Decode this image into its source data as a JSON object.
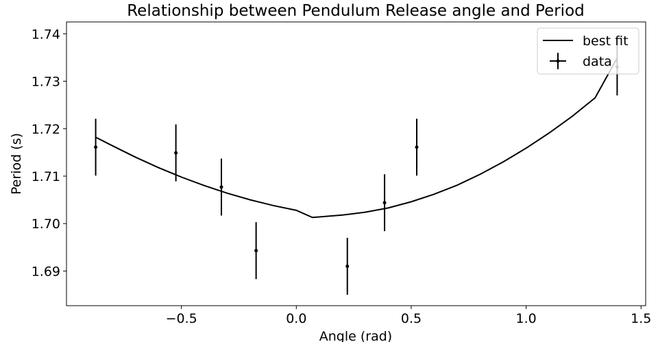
{
  "chart_data": {
    "type": "scatter",
    "title": "Relationship between Pendulum Release angle and Period",
    "xlabel": "Angle (rad)",
    "ylabel": "Period (s)",
    "xlim": [
      -1.0,
      1.52
    ],
    "ylim": [
      1.6827,
      1.7425
    ],
    "xticks": [
      -0.5,
      0.0,
      0.5,
      1.0,
      1.5
    ],
    "xtick_labels": [
      "−0.5",
      "0.0",
      "0.5",
      "1.0",
      "1.5"
    ],
    "yticks": [
      1.69,
      1.7,
      1.71,
      1.72,
      1.73,
      1.74
    ],
    "ytick_labels": [
      "1.69",
      "1.70",
      "1.71",
      "1.72",
      "1.73",
      "1.74"
    ],
    "grid": false,
    "legend_position": "top-right",
    "series": [
      {
        "name": "data",
        "kind": "errorbar",
        "color": "#000000",
        "points": [
          {
            "x": -0.873,
            "y": 1.7161,
            "yerr": 0.006
          },
          {
            "x": -0.524,
            "y": 1.7149,
            "yerr": 0.006
          },
          {
            "x": -0.326,
            "y": 1.7077,
            "yerr": 0.006
          },
          {
            "x": -0.175,
            "y": 1.6943,
            "yerr": 0.006
          },
          {
            "x": 0.222,
            "y": 1.691,
            "yerr": 0.006
          },
          {
            "x": 0.384,
            "y": 1.7044,
            "yerr": 0.006
          },
          {
            "x": 0.524,
            "y": 1.7161,
            "yerr": 0.006
          },
          {
            "x": 1.396,
            "y": 1.733,
            "yerr": 0.006
          }
        ]
      },
      {
        "name": "best fit",
        "kind": "line",
        "color": "#000000",
        "x": [
          -0.873,
          -0.8,
          -0.7,
          -0.6,
          -0.5,
          -0.4,
          -0.3,
          -0.2,
          -0.1,
          0.0,
          0.07,
          0.1,
          0.2,
          0.3,
          0.4,
          0.5,
          0.6,
          0.7,
          0.8,
          0.9,
          1.0,
          1.1,
          1.2,
          1.3,
          1.396
        ],
        "y": [
          1.7182,
          1.7164,
          1.714,
          1.7118,
          1.7098,
          1.708,
          1.7064,
          1.705,
          1.7038,
          1.7028,
          1.7013,
          1.7014,
          1.7018,
          1.7024,
          1.7033,
          1.7046,
          1.7062,
          1.7081,
          1.7104,
          1.713,
          1.7159,
          1.7191,
          1.7226,
          1.7265,
          1.7349
        ]
      }
    ]
  }
}
